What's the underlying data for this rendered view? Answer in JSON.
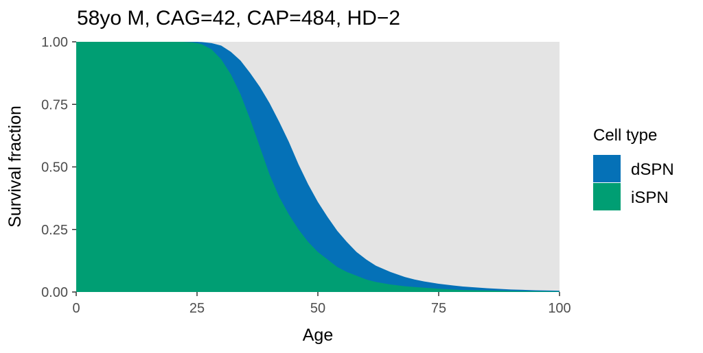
{
  "chart_data": {
    "type": "area",
    "title": "58yo M, CAG=42, CAP=484, HD−2",
    "xlabel": "Age",
    "ylabel": "Survival fraction",
    "xlim": [
      0,
      100
    ],
    "ylim": [
      0,
      1
    ],
    "x_ticks": [
      "0",
      "25",
      "50",
      "75",
      "100"
    ],
    "y_ticks": [
      "0.00",
      "0.25",
      "0.50",
      "0.75",
      "1.00"
    ],
    "grid": false,
    "panel_background": "#E4E4E4",
    "legend": {
      "title": "Cell type",
      "placement": "right",
      "entries": [
        {
          "label": "dSPN",
          "color": "#0571B7"
        },
        {
          "label": "iSPN",
          "color": "#009E73"
        }
      ]
    },
    "x": [
      0,
      5,
      10,
      15,
      20,
      22,
      24,
      25,
      26,
      28,
      30,
      32,
      34,
      36,
      38,
      40,
      42,
      44,
      46,
      48,
      50,
      52,
      54,
      56,
      58,
      60,
      62,
      65,
      68,
      70,
      72,
      75,
      78,
      80,
      85,
      90,
      95,
      100
    ],
    "series": [
      {
        "name": "dSPN",
        "color": "#0571B7",
        "values": [
          1.0,
          1.0,
          1.0,
          1.0,
          1.0,
          1.0,
          1.0,
          1.0,
          0.999,
          0.995,
          0.985,
          0.96,
          0.925,
          0.875,
          0.82,
          0.755,
          0.68,
          0.6,
          0.51,
          0.43,
          0.36,
          0.3,
          0.245,
          0.2,
          0.16,
          0.13,
          0.105,
          0.08,
          0.06,
          0.05,
          0.042,
          0.033,
          0.026,
          0.022,
          0.015,
          0.01,
          0.007,
          0.005
        ]
      },
      {
        "name": "iSPN",
        "color": "#009E73",
        "values": [
          1.0,
          1.0,
          1.0,
          1.0,
          1.0,
          1.0,
          0.998,
          0.995,
          0.99,
          0.97,
          0.93,
          0.87,
          0.79,
          0.69,
          0.58,
          0.47,
          0.38,
          0.31,
          0.25,
          0.2,
          0.16,
          0.13,
          0.1,
          0.08,
          0.065,
          0.05,
          0.04,
          0.03,
          0.023,
          0.02,
          0.017,
          0.013,
          0.01,
          0.008,
          0.006,
          0.004,
          0.003,
          0.002
        ]
      }
    ]
  }
}
